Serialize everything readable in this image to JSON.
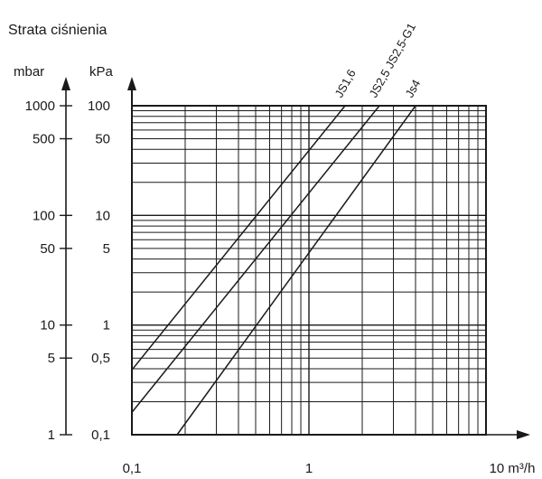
{
  "chart_data": {
    "type": "line",
    "title": "Strata ciśnienia",
    "scale": "log-log",
    "grid": true,
    "x_axis": {
      "unit_label": "10 m³/h",
      "range": [
        0.1,
        10
      ],
      "tick_labels": [
        "0,1",
        "1"
      ]
    },
    "y_axis_mbar": {
      "unit_label": "mbar",
      "range": [
        1,
        1000
      ],
      "ticks": [
        1,
        5,
        10,
        50,
        100,
        500,
        1000
      ],
      "tick_labels": [
        "1",
        "5",
        "10",
        "50",
        "100",
        "500",
        "1000"
      ]
    },
    "y_axis_kpa": {
      "unit_label": "kPa",
      "range": [
        0.1,
        100
      ],
      "ticks": [
        0.1,
        0.5,
        1,
        5,
        10,
        50,
        100
      ],
      "tick_labels": [
        "0,1",
        "0,5",
        "1",
        "5",
        "10",
        "50",
        "100"
      ]
    },
    "series": [
      {
        "name": "JS1,6",
        "x": [
          0.1,
          1.6
        ],
        "y": [
          0.39,
          100
        ]
      },
      {
        "name": "JS2,5 JS2,5-G1",
        "x": [
          0.1,
          2.5
        ],
        "y": [
          0.16,
          100
        ]
      },
      {
        "name": "Js4",
        "x": [
          0.18,
          4.0
        ],
        "y": [
          0.1,
          100
        ]
      }
    ]
  }
}
